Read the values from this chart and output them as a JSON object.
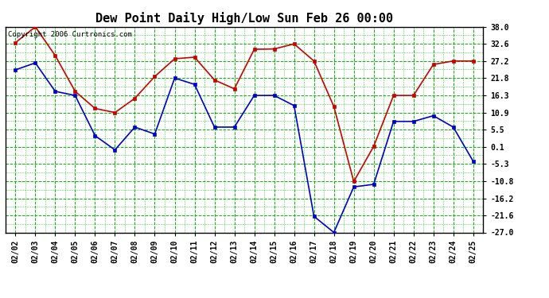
{
  "title": "Dew Point Daily High/Low Sun Feb 26 00:00",
  "copyright": "Copyright 2006 Curtronics.com",
  "dates": [
    "02/02",
    "02/03",
    "02/04",
    "02/05",
    "02/06",
    "02/07",
    "02/08",
    "02/09",
    "02/10",
    "02/11",
    "02/12",
    "02/13",
    "02/14",
    "02/15",
    "02/16",
    "02/17",
    "02/18",
    "02/19",
    "02/20",
    "02/21",
    "02/22",
    "02/23",
    "02/24",
    "02/25"
  ],
  "high_values": [
    33.0,
    38.0,
    28.9,
    17.6,
    12.2,
    10.9,
    15.4,
    22.3,
    27.9,
    28.4,
    21.2,
    18.4,
    30.9,
    31.0,
    32.6,
    27.2,
    12.8,
    -10.9,
    0.2,
    16.3,
    16.3,
    26.1,
    27.2,
    27.2
  ],
  "low_values": [
    24.4,
    26.6,
    17.6,
    16.3,
    3.6,
    -0.9,
    6.3,
    4.1,
    21.8,
    19.8,
    6.3,
    6.3,
    16.3,
    16.3,
    13.1,
    -21.9,
    -27.0,
    -12.6,
    -11.8,
    8.1,
    8.1,
    9.9,
    6.3,
    -4.5
  ],
  "high_color": "#cc0000",
  "low_color": "#0000cc",
  "background_color": "#ffffff",
  "plot_bg_color": "#ffffff",
  "grid_color": "#00bb00",
  "ylim_min": -27.0,
  "ylim_max": 38.0,
  "ytick_labels": [
    "38.0",
    "32.6",
    "27.2",
    "21.8",
    "16.3",
    "10.9",
    "5.5",
    "0.1",
    "-5.3",
    "-10.8",
    "-16.2",
    "-21.6",
    "-27.0"
  ],
  "ytick_values": [
    38.0,
    32.6,
    27.2,
    21.8,
    16.3,
    10.9,
    5.5,
    0.1,
    -5.3,
    -10.8,
    -16.2,
    -21.6,
    -27.0
  ],
  "title_fontsize": 11,
  "tick_fontsize": 7,
  "marker": "s",
  "markersize": 3,
  "linewidth": 1.2
}
